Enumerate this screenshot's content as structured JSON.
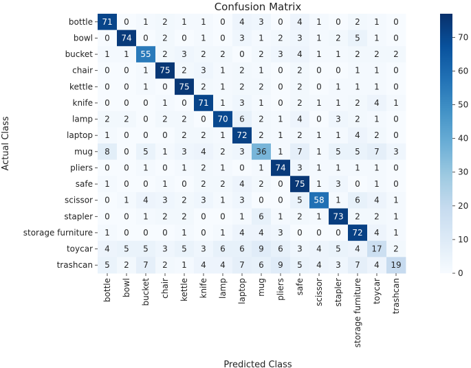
{
  "chart_data": {
    "type": "heatmap",
    "title": "Confusion Matrix",
    "xlabel": "Predicted Class",
    "ylabel": "Actual Class",
    "rows": [
      "bottle",
      "bowl",
      "bucket",
      "chair",
      "kettle",
      "knife",
      "lamp",
      "laptop",
      "mug",
      "pliers",
      "safe",
      "scissor",
      "stapler",
      "storage furniture",
      "toycar",
      "trashcan"
    ],
    "columns": [
      "bottle",
      "bowl",
      "bucket",
      "chair",
      "kettle",
      "knife",
      "lamp",
      "laptop",
      "mug",
      "pliers",
      "safe",
      "scissor",
      "stapler",
      "storage furniture",
      "toycar",
      "trashcan"
    ],
    "values": [
      [
        71,
        0,
        1,
        2,
        1,
        1,
        0,
        4,
        3,
        0,
        4,
        1,
        0,
        2,
        1,
        0
      ],
      [
        0,
        74,
        0,
        2,
        0,
        1,
        0,
        3,
        1,
        2,
        3,
        1,
        2,
        5,
        1,
        0
      ],
      [
        1,
        1,
        55,
        2,
        3,
        2,
        2,
        0,
        2,
        3,
        4,
        1,
        1,
        2,
        2,
        2
      ],
      [
        0,
        0,
        1,
        75,
        2,
        3,
        1,
        2,
        1,
        0,
        2,
        0,
        0,
        1,
        1,
        0
      ],
      [
        0,
        0,
        1,
        0,
        75,
        2,
        1,
        2,
        2,
        0,
        2,
        0,
        1,
        1,
        1,
        0
      ],
      [
        0,
        0,
        0,
        1,
        0,
        71,
        1,
        3,
        1,
        0,
        2,
        1,
        1,
        2,
        4,
        1
      ],
      [
        2,
        2,
        0,
        2,
        2,
        0,
        70,
        6,
        2,
        1,
        4,
        0,
        3,
        2,
        1,
        0
      ],
      [
        1,
        0,
        0,
        0,
        2,
        2,
        1,
        72,
        2,
        1,
        2,
        1,
        1,
        4,
        2,
        0
      ],
      [
        8,
        0,
        5,
        1,
        3,
        4,
        2,
        3,
        36,
        1,
        7,
        1,
        5,
        5,
        7,
        3
      ],
      [
        0,
        0,
        1,
        0,
        1,
        2,
        1,
        0,
        1,
        74,
        3,
        1,
        1,
        1,
        1,
        0
      ],
      [
        1,
        0,
        0,
        1,
        0,
        2,
        2,
        4,
        2,
        0,
        75,
        1,
        3,
        0,
        1,
        0
      ],
      [
        0,
        1,
        4,
        3,
        2,
        3,
        1,
        3,
        0,
        0,
        5,
        58,
        1,
        6,
        4,
        1
      ],
      [
        0,
        0,
        1,
        2,
        2,
        0,
        0,
        1,
        6,
        1,
        2,
        1,
        73,
        2,
        2,
        1
      ],
      [
        1,
        0,
        0,
        0,
        1,
        0,
        1,
        4,
        4,
        3,
        0,
        0,
        0,
        72,
        4,
        1
      ],
      [
        4,
        5,
        5,
        3,
        5,
        3,
        6,
        6,
        9,
        6,
        3,
        4,
        5,
        4,
        17,
        2
      ],
      [
        5,
        2,
        7,
        2,
        1,
        4,
        4,
        7,
        6,
        9,
        5,
        4,
        3,
        7,
        4,
        19
      ]
    ],
    "colorbar": {
      "range": [
        0,
        77
      ],
      "ticks": [
        0,
        10,
        20,
        30,
        40,
        50,
        60,
        70
      ]
    },
    "colormap": [
      "#f7fbff",
      "#deebf7",
      "#c6dbef",
      "#9ecae1",
      "#6baed6",
      "#4292c6",
      "#2171b5",
      "#08519c",
      "#08306b"
    ],
    "text_dark": "#262626",
    "text_light": "#ffffff"
  }
}
